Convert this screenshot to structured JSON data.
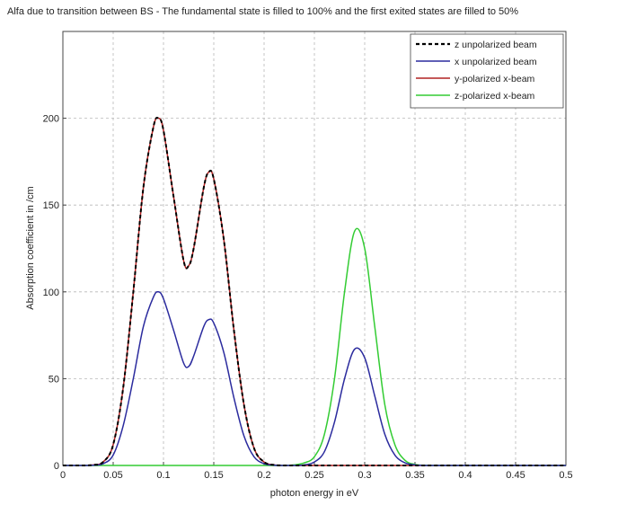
{
  "chart_data": {
    "type": "line",
    "title": "Alfa due to transition between BS - The fundamental state is filled to 100% and the first exited states are filled to 50%",
    "xlabel": "photon energy in eV",
    "ylabel": "Absorption coefficient in /cm",
    "xlim": [
      0,
      0.5
    ],
    "ylim": [
      0,
      250
    ],
    "x_ticks": [
      0,
      0.05,
      0.1,
      0.15,
      0.2,
      0.25,
      0.3,
      0.35,
      0.4,
      0.45,
      0.5
    ],
    "x_tick_labels": [
      "0",
      "0.05",
      "0.1",
      "0.15",
      "0.2",
      "0.25",
      "0.3",
      "0.35",
      "0.4",
      "0.45",
      "0.5"
    ],
    "y_ticks": [
      0,
      50,
      100,
      150,
      200
    ],
    "y_tick_labels": [
      "0",
      "50",
      "100",
      "150",
      "200"
    ],
    "grid": true,
    "legend_position": "top-right",
    "x": [
      0,
      0.02,
      0.03,
      0.04,
      0.05,
      0.06,
      0.07,
      0.08,
      0.09,
      0.095,
      0.1,
      0.11,
      0.12,
      0.125,
      0.13,
      0.14,
      0.145,
      0.15,
      0.16,
      0.17,
      0.18,
      0.19,
      0.2,
      0.21,
      0.22,
      0.23,
      0.24,
      0.25,
      0.26,
      0.27,
      0.28,
      0.29,
      0.3,
      0.31,
      0.32,
      0.33,
      0.34,
      0.35,
      0.36,
      0.38,
      0.4,
      0.45,
      0.5
    ],
    "series": [
      {
        "name": "z unpolarized beam",
        "color": "#000000",
        "style": "dashed",
        "values": [
          0,
          0,
          0.3,
          2,
          12,
          45,
          100,
          160,
          195,
          200,
          193,
          155,
          118,
          115,
          125,
          160,
          169,
          165,
          130,
          78,
          35,
          10,
          2,
          0.3,
          0,
          0,
          0,
          0,
          0,
          0,
          0,
          0,
          0,
          0,
          0,
          0,
          0,
          0,
          0,
          0,
          0,
          0,
          0
        ]
      },
      {
        "name": "x unpolarized beam",
        "color": "#2b2b9e",
        "style": "solid",
        "values": [
          0,
          0,
          0.15,
          1,
          6,
          23,
          50,
          80,
          97,
          100,
          96,
          78,
          59,
          57,
          63,
          80,
          84,
          82,
          65,
          39,
          17,
          5,
          1,
          0.15,
          0,
          0,
          0.3,
          2,
          8,
          25,
          50,
          67,
          62,
          40,
          18,
          6,
          1.5,
          0.3,
          0,
          0,
          0,
          0,
          0
        ]
      },
      {
        "name": "y-polarized x-beam",
        "color": "#b22222",
        "style": "solid",
        "values": [
          0,
          0,
          0.3,
          2,
          12,
          45,
          100,
          160,
          195,
          200,
          193,
          155,
          118,
          115,
          125,
          160,
          169,
          165,
          130,
          78,
          35,
          10,
          2,
          0.3,
          0,
          0,
          0,
          0,
          0,
          0,
          0,
          0,
          0,
          0,
          0,
          0,
          0,
          0,
          0,
          0,
          0,
          0,
          0
        ]
      },
      {
        "name": "z-polarized x-beam",
        "color": "#33cc33",
        "style": "solid",
        "values": [
          0,
          0,
          0,
          0,
          0,
          0,
          0,
          0,
          0,
          0,
          0,
          0,
          0,
          0,
          0,
          0,
          0,
          0,
          0,
          0,
          0,
          0,
          0,
          0,
          0,
          0.3,
          1.5,
          5,
          18,
          50,
          100,
          135,
          125,
          80,
          35,
          12,
          3,
          0.6,
          0.1,
          0,
          0,
          0,
          0
        ]
      }
    ]
  }
}
